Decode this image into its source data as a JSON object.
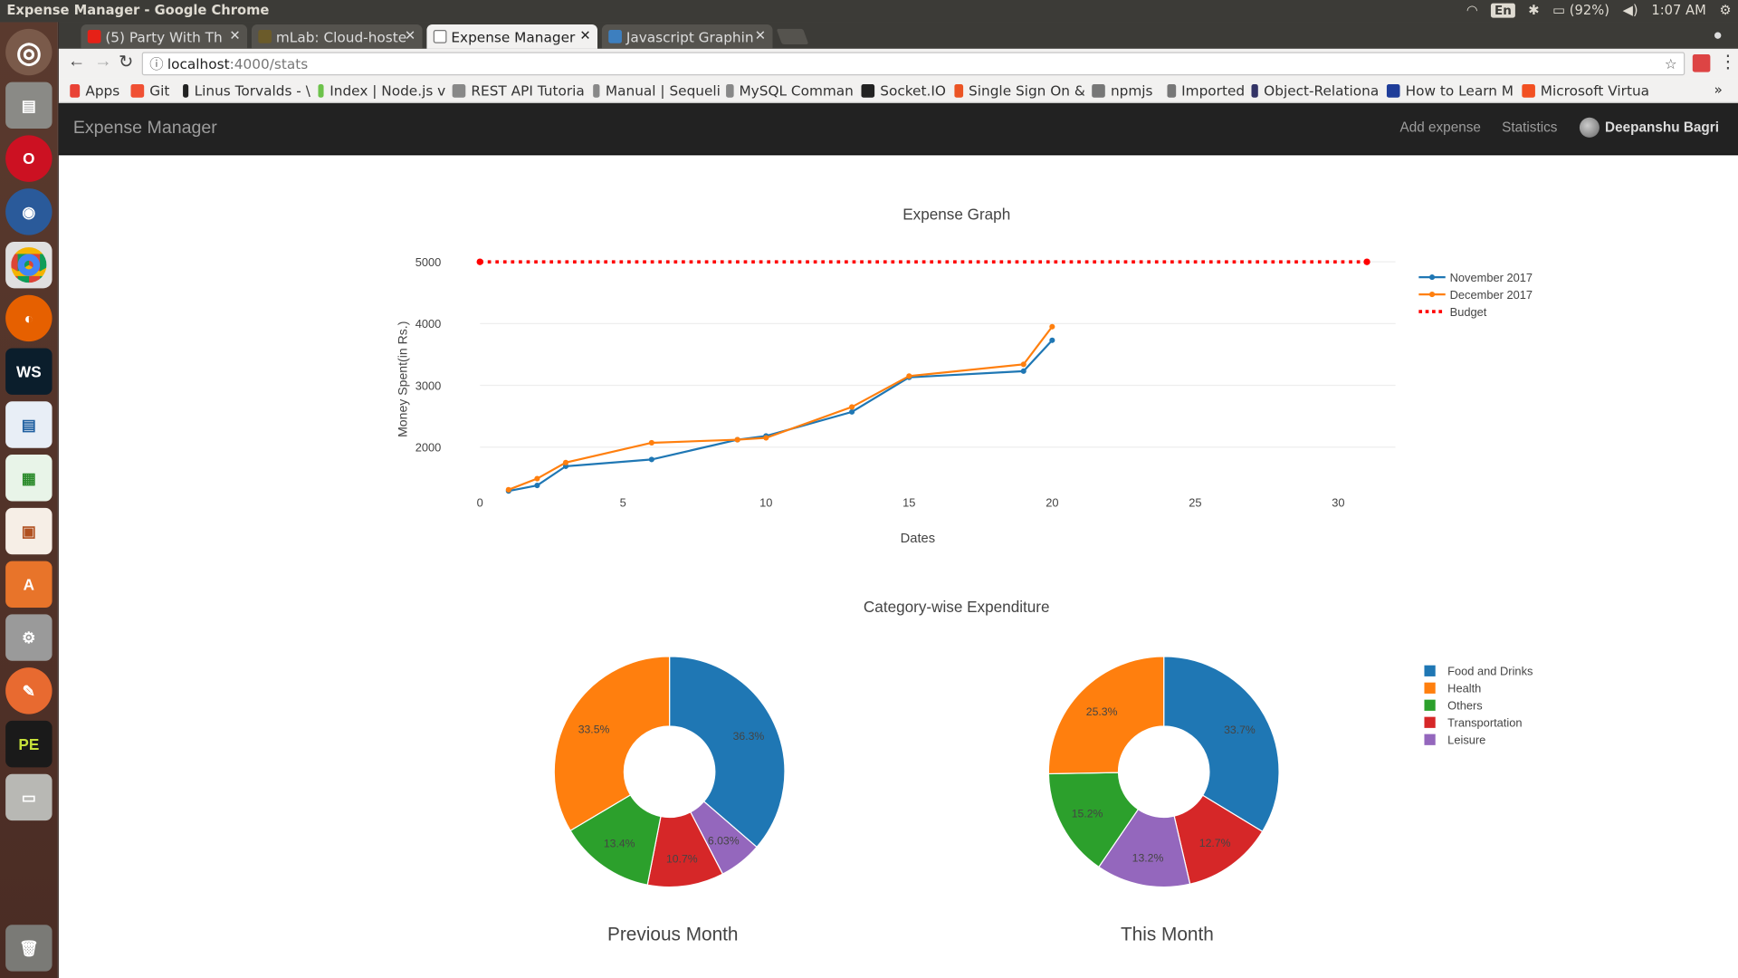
{
  "os": {
    "window_title": "Expense Manager - Google Chrome",
    "lang": "En",
    "battery": "(92%)",
    "time": "1:07 AM"
  },
  "browser": {
    "tabs": [
      {
        "label": "(5) Party With Th",
        "color": "#e62117"
      },
      {
        "label": "mLab: Cloud-hoste",
        "color": "#6b5b2a"
      },
      {
        "label": "Expense Manager",
        "color": "#ffffff"
      },
      {
        "label": "Javascript Graphin",
        "color": "#3d7fbf"
      }
    ],
    "url_host": "localhost",
    "url_path": ":4000/stats",
    "bookmarks": [
      {
        "label": "Apps",
        "color": "#e94235"
      },
      {
        "label": "Git",
        "color": "#f05033"
      },
      {
        "label": "Linus Torvalds - \\",
        "color": "#222222"
      },
      {
        "label": "Index | Node.js v",
        "color": "#6cc24a"
      },
      {
        "label": "REST API Tutoria",
        "color": "#888888"
      },
      {
        "label": "Manual | Sequeli",
        "color": "#888888"
      },
      {
        "label": "MySQL Comman",
        "color": "#888888"
      },
      {
        "label": "Socket.IO",
        "color": "#222222"
      },
      {
        "label": "Single Sign On &",
        "color": "#eb5424"
      },
      {
        "label": "npmjs",
        "color": "#777777"
      },
      {
        "label": "Imported",
        "color": "#777777"
      },
      {
        "label": "Object-Relationa",
        "color": "#333366"
      },
      {
        "label": "How to Learn M",
        "color": "#1f3d99"
      },
      {
        "label": "Microsoft Virtua",
        "color": "#f25022"
      }
    ]
  },
  "navbar": {
    "brand": "Expense Manager",
    "links": [
      "Add expense",
      "Statistics"
    ],
    "user": "Deepanshu Bagri"
  },
  "chart_data": [
    {
      "type": "line",
      "title": "Expense Graph",
      "xlabel": "Dates",
      "ylabel": "Money Spent(in Rs.)",
      "xlim": [
        0,
        32
      ],
      "ylim": [
        1250,
        5200
      ],
      "xticks": [
        0,
        5,
        10,
        15,
        20,
        25,
        30
      ],
      "yticks": [
        2000,
        3000,
        4000,
        5000
      ],
      "legend": "top-right",
      "series": [
        {
          "name": "November 2017",
          "color": "#1f77b4",
          "style": "solid",
          "x": [
            1,
            2,
            3,
            6,
            9,
            10,
            13,
            15,
            19,
            20
          ],
          "y": [
            1290,
            1380,
            1690,
            1800,
            2120,
            2180,
            2570,
            3130,
            3230,
            3730
          ]
        },
        {
          "name": "December 2017",
          "color": "#ff7f0e",
          "style": "solid",
          "x": [
            1,
            2,
            3,
            6,
            9,
            10,
            13,
            15,
            19,
            20
          ],
          "y": [
            1310,
            1490,
            1750,
            2070,
            2120,
            2150,
            2650,
            3150,
            3340,
            3950
          ]
        },
        {
          "name": "Budget",
          "color": "#ff0000",
          "style": "dotted",
          "x": [
            0,
            31
          ],
          "y": [
            5000,
            5000
          ]
        }
      ]
    },
    {
      "type": "pie",
      "title": "Category-wise Expenditure",
      "legend": "top-right",
      "categories": [
        "Food and Drinks",
        "Health",
        "Others",
        "Transportation",
        "Leisure"
      ],
      "colors": [
        "#1f77b4",
        "#ff7f0e",
        "#2ca02c",
        "#d62728",
        "#9467bd"
      ],
      "pies": [
        {
          "label": "Previous Month",
          "slices": [
            {
              "category": "Food and Drinks",
              "value": 36.3,
              "text": "36.3%"
            },
            {
              "category": "Leisure",
              "value": 6.03,
              "text": "6.03%"
            },
            {
              "category": "Transportation",
              "value": 10.7,
              "text": "10.7%"
            },
            {
              "category": "Others",
              "value": 13.4,
              "text": "13.4%"
            },
            {
              "category": "Health",
              "value": 33.5,
              "text": "33.5%"
            }
          ]
        },
        {
          "label": "This Month",
          "slices": [
            {
              "category": "Food and Drinks",
              "value": 33.7,
              "text": "33.7%"
            },
            {
              "category": "Transportation",
              "value": 12.7,
              "text": "12.7%"
            },
            {
              "category": "Leisure",
              "value": 13.2,
              "text": "13.2%"
            },
            {
              "category": "Others",
              "value": 15.2,
              "text": "15.2%"
            },
            {
              "category": "Health",
              "value": 25.3,
              "text": "25.3%"
            }
          ]
        }
      ]
    }
  ]
}
